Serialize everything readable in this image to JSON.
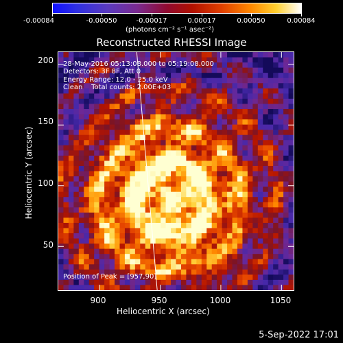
{
  "colorbar": {
    "ticks": [
      "-0.00084",
      "-0.00050",
      "-0.00017",
      "0.00017",
      "0.00050",
      "0.00084"
    ],
    "units": "(photons cm⁻² s⁻¹ asec⁻²)"
  },
  "plot": {
    "title": "Reconstructed RHESSI Image",
    "info_lines": [
      "28-May-2016 05:13:08.000 to 05:19:08.000",
      "Detectors: 3F 8F, Att 0",
      "Energy Range: 12.0 - 25.0 keV",
      "Clean    Total counts: 2.00E+03"
    ],
    "peak_label": "Position of Peak = [957,90]",
    "xlabel": "Heliocentric X (arcsec)",
    "ylabel": "Heliocentric Y (arcsec)",
    "xticks": [
      "900",
      "950",
      "1000",
      "1050"
    ],
    "yticks": [
      "200",
      "150",
      "100",
      "50"
    ],
    "xlim": [
      866,
      1060
    ],
    "ylim": [
      14,
      210
    ],
    "x_tick_values": [
      900,
      950,
      1000,
      1050
    ],
    "y_tick_values": [
      200,
      150,
      100,
      50
    ],
    "peak_xy": [
      957,
      90
    ]
  },
  "footer": {
    "timestamp": "5-Sep-2022 17:01"
  },
  "colors": {
    "background": "#000000",
    "foreground": "#ffffff",
    "limb_line": "#ffffff"
  }
}
